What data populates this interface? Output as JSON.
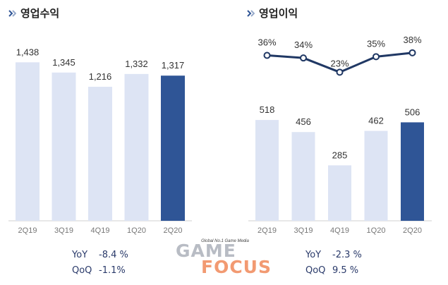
{
  "titles": {
    "left": "영업수익",
    "right": "영업이익"
  },
  "stats_left": {
    "yoy_key": "YoY",
    "yoy_value": "-8.4 %",
    "qoq_key": "QoQ",
    "qoq_value": "-1.1%"
  },
  "stats_right": {
    "yoy_key": "YoY",
    "yoy_value": "-2.3 %",
    "qoq_key": "QoQ",
    "qoq_value": "9.5 %"
  },
  "watermark": {
    "tagline": "Global No.1 Game Media",
    "line1": "GAME",
    "line2": "FOCUS"
  },
  "colors": {
    "bar_light": "#dde4f4",
    "bar_highlight": "#2f5596",
    "line": "#203864",
    "title_mark": "#2f5596"
  },
  "chart_data": [
    {
      "type": "bar",
      "categories": [
        "2Q19",
        "3Q19",
        "4Q19",
        "1Q20",
        "2Q20"
      ],
      "values": [
        1438,
        1345,
        1216,
        1332,
        1317
      ],
      "labels": [
        "1,438",
        "1,345",
        "1,216",
        "1,332",
        "1,317"
      ],
      "highlight_index": 4,
      "title": "영업수익",
      "ylim": [
        0,
        1600
      ],
      "grid": false
    },
    {
      "type": "bar",
      "categories": [
        "2Q19",
        "3Q19",
        "4Q19",
        "1Q20",
        "2Q20"
      ],
      "values": [
        518,
        456,
        285,
        462,
        506
      ],
      "labels": [
        "518",
        "456",
        "285",
        "462",
        "506"
      ],
      "highlight_index": 4,
      "title": "영업이익",
      "ylim": [
        0,
        580
      ],
      "grid": false,
      "line_series": {
        "values": [
          36,
          34,
          23,
          35,
          38
        ],
        "labels": [
          "36%",
          "34%",
          "23%",
          "35%",
          "38%"
        ],
        "ylim": [
          15,
          45
        ]
      }
    }
  ]
}
